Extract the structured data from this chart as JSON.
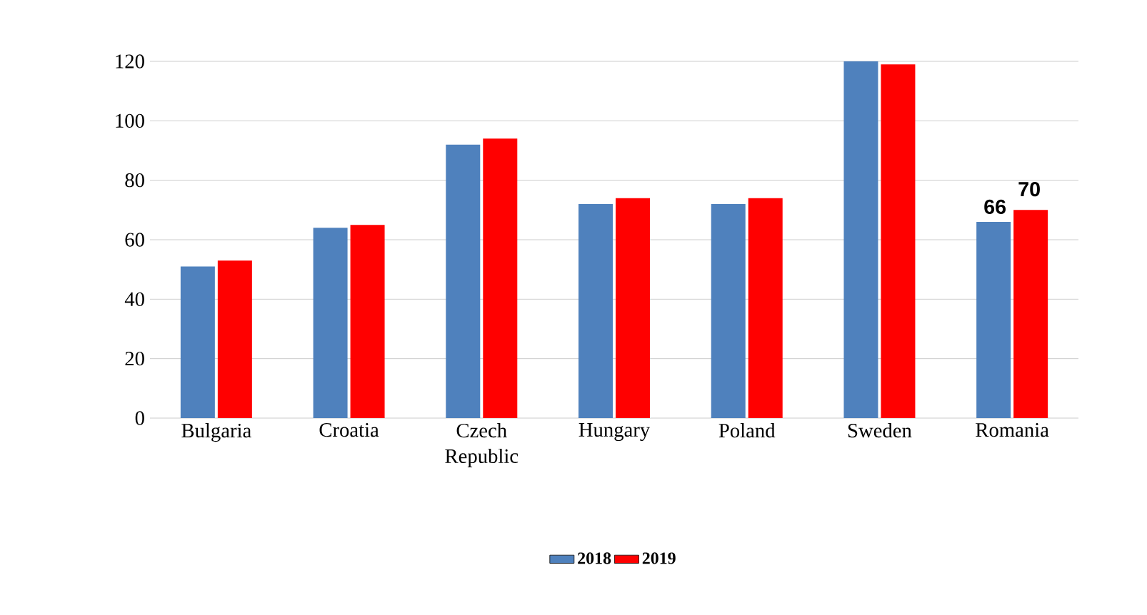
{
  "chart_data": {
    "type": "bar",
    "categories": [
      "Bulgaria",
      "Croatia",
      "Czech Republic",
      "Hungary",
      "Poland",
      "Sweden",
      "Romania"
    ],
    "series": [
      {
        "name": "2018",
        "color": "#4f81bd",
        "values": [
          51,
          64,
          92,
          72,
          72,
          120,
          66
        ],
        "value_labels": [
          null,
          null,
          null,
          null,
          null,
          null,
          "66"
        ]
      },
      {
        "name": "2019",
        "color": "#ff0000",
        "values": [
          53,
          65,
          94,
          74,
          74,
          119,
          70
        ],
        "value_labels": [
          null,
          null,
          null,
          null,
          null,
          null,
          "70"
        ]
      }
    ],
    "ylim": [
      0,
      120
    ],
    "yticks": [
      0,
      20,
      40,
      60,
      80,
      100,
      120
    ],
    "grid": "y",
    "legend": "bottom"
  }
}
